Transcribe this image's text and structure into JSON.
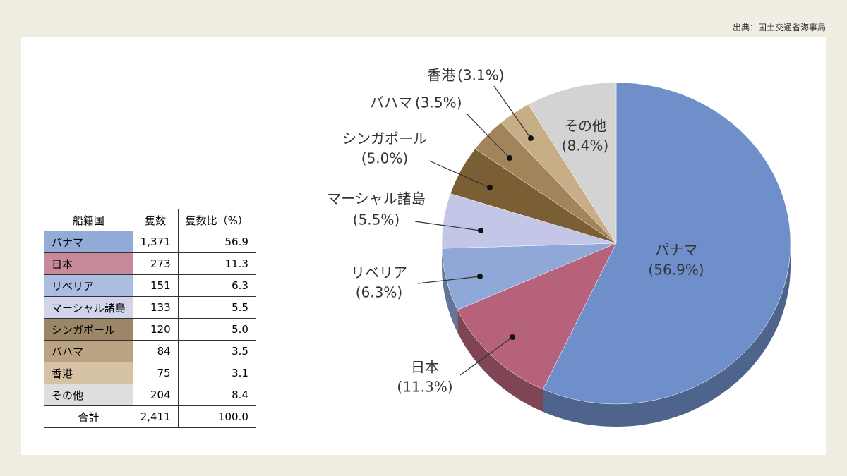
{
  "source": "出典：国土交通省海事局",
  "table": {
    "header": [
      "船籍国",
      "隻数",
      "隻数比（%）"
    ],
    "rows": [
      [
        "パナマ",
        "1,371",
        "56.9"
      ],
      [
        "日本",
        "273",
        "11.3"
      ],
      [
        "リベリア",
        "151",
        "6.3"
      ],
      [
        "マーシャル諸島",
        "133",
        "5.5"
      ],
      [
        "シンガポール",
        "120",
        "5.0"
      ],
      [
        "バハマ",
        "84",
        "3.5"
      ],
      [
        "香港",
        "75",
        "3.1"
      ],
      [
        "その他",
        "204",
        "8.4"
      ]
    ],
    "total": [
      "合計",
      "2,411",
      "100.0"
    ]
  },
  "chart_data": {
    "type": "pie",
    "categories": [
      "パナマ",
      "日本",
      "リベリア",
      "マーシャル諸島",
      "シンガポール",
      "バハマ",
      "香港",
      "その他"
    ],
    "values": [
      56.9,
      11.3,
      6.3,
      5.5,
      5.0,
      3.5,
      3.1,
      8.4
    ],
    "value_labels": [
      "(56.9%)",
      "(11.3%)",
      "(6.3%)",
      "(5.5%)",
      "(5.0%)",
      "(3.5%)",
      "(3.1%)",
      "(8.4%)"
    ],
    "colors": [
      "#6f8fca",
      "#b5627a",
      "#8fa8d8",
      "#c3c6e6",
      "#7a5e34",
      "#a3845a",
      "#c8ae86",
      "#d3d3d3"
    ]
  }
}
